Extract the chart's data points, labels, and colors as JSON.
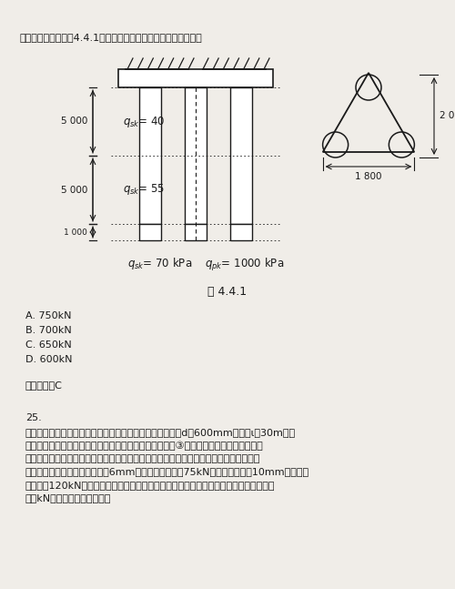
{
  "bg_color": "#f0ede8",
  "text_color": "#1a1a1a",
  "top_text": "度、偶阻、端阻如图4.4.1所示。基桩尺向承载力特征値为（）。",
  "fig_label": "图 4.4.1",
  "choices": [
    "A. 750kN",
    "B. 700kN",
    "C. 650kN",
    "D. 600kN"
  ],
  "answer": "正确答案：C",
  "q25_title": "25.",
  "q25_body1": "单选题：某建筑桩基工程采用泥浆护壁非挤土灰注桩，桩径d为600mm，桩长ι＝30m，灸",
  "q25_body2": "注桩配筋、地基土层分布及相关参数情况，如图所示，第③层粉沙层为不液化土层。桩身",
  "q25_body3": "配筋符合《建筑桩基技术规范》灸注桩配筋的有关要求。建筑物对水平位移不敏感，单桩",
  "q25_body4": "水平静载试验时，桩顶水平位移6mm时所对应的荷载为75kN，桩顶水平位移10mm时所对应",
  "q25_body5": "的荷载为120kN。试问：当验算永久荷载控制的桩基水平承载力时，单桩水平承载力特征",
  "q25_body6": "値（kN）最接近下列（）项。"
}
